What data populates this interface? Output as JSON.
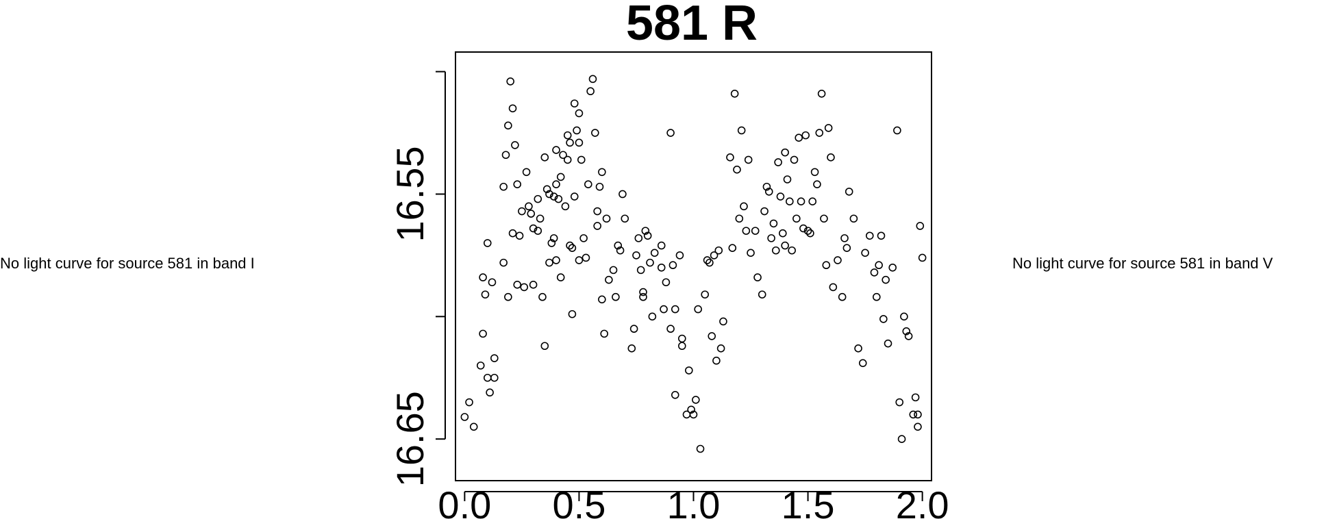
{
  "notes": {
    "left": "No light curve for source 581 in band I",
    "right": "No light curve for source 581 in band V"
  },
  "chart_data": {
    "type": "scatter",
    "title": "581 R",
    "xlabel": "",
    "ylabel": "",
    "xlim": [
      -0.04,
      2.04
    ],
    "ylim": [
      16.667,
      16.492
    ],
    "y_inverted": true,
    "grid": false,
    "x_ticks": [
      0.0,
      0.5,
      1.0,
      1.5,
      2.0
    ],
    "x_tick_labels": [
      "0.0",
      "0.5",
      "1.0",
      "1.5",
      "2.0"
    ],
    "y_ticks": [
      16.5,
      16.55,
      16.6,
      16.65
    ],
    "y_tick_labels": [
      "",
      "16.55",
      "",
      "16.65"
    ],
    "marker": "open-circle",
    "color": "#000000",
    "points": [
      [
        0.0,
        16.641
      ],
      [
        0.02,
        16.635
      ],
      [
        0.04,
        16.645
      ],
      [
        0.07,
        16.62
      ],
      [
        0.08,
        16.607
      ],
      [
        0.08,
        16.584
      ],
      [
        0.09,
        16.591
      ],
      [
        0.1,
        16.625
      ],
      [
        0.1,
        16.57
      ],
      [
        0.11,
        16.631
      ],
      [
        0.12,
        16.586
      ],
      [
        0.13,
        16.625
      ],
      [
        0.13,
        16.617
      ],
      [
        0.17,
        16.578
      ],
      [
        0.17,
        16.547
      ],
      [
        0.18,
        16.534
      ],
      [
        0.19,
        16.592
      ],
      [
        0.19,
        16.522
      ],
      [
        0.2,
        16.504
      ],
      [
        0.21,
        16.566
      ],
      [
        0.21,
        16.515
      ],
      [
        0.22,
        16.53
      ],
      [
        0.23,
        16.546
      ],
      [
        0.23,
        16.587
      ],
      [
        0.24,
        16.567
      ],
      [
        0.25,
        16.557
      ],
      [
        0.26,
        16.588
      ],
      [
        0.27,
        16.541
      ],
      [
        0.28,
        16.555
      ],
      [
        0.29,
        16.558
      ],
      [
        0.3,
        16.564
      ],
      [
        0.3,
        16.587
      ],
      [
        0.32,
        16.552
      ],
      [
        0.32,
        16.565
      ],
      [
        0.33,
        16.56
      ],
      [
        0.34,
        16.592
      ],
      [
        0.35,
        16.612
      ],
      [
        0.35,
        16.535
      ],
      [
        0.36,
        16.548
      ],
      [
        0.37,
        16.578
      ],
      [
        0.37,
        16.55
      ],
      [
        0.38,
        16.57
      ],
      [
        0.39,
        16.551
      ],
      [
        0.39,
        16.568
      ],
      [
        0.4,
        16.577
      ],
      [
        0.4,
        16.532
      ],
      [
        0.4,
        16.546
      ],
      [
        0.41,
        16.552
      ],
      [
        0.42,
        16.584
      ],
      [
        0.42,
        16.543
      ],
      [
        0.43,
        16.534
      ],
      [
        0.44,
        16.555
      ],
      [
        0.45,
        16.536
      ],
      [
        0.45,
        16.526
      ],
      [
        0.46,
        16.529
      ],
      [
        0.46,
        16.571
      ],
      [
        0.47,
        16.572
      ],
      [
        0.47,
        16.599
      ],
      [
        0.48,
        16.513
      ],
      [
        0.48,
        16.551
      ],
      [
        0.49,
        16.524
      ],
      [
        0.5,
        16.577
      ],
      [
        0.5,
        16.529
      ],
      [
        0.5,
        16.517
      ],
      [
        0.51,
        16.536
      ],
      [
        0.52,
        16.568
      ],
      [
        0.53,
        16.576
      ],
      [
        0.54,
        16.546
      ],
      [
        0.55,
        16.508
      ],
      [
        0.56,
        16.503
      ],
      [
        0.57,
        16.525
      ],
      [
        0.58,
        16.557
      ],
      [
        0.58,
        16.563
      ],
      [
        0.59,
        16.547
      ],
      [
        0.6,
        16.593
      ],
      [
        0.6,
        16.541
      ],
      [
        0.61,
        16.607
      ],
      [
        0.62,
        16.56
      ],
      [
        0.63,
        16.585
      ],
      [
        0.65,
        16.581
      ],
      [
        0.66,
        16.592
      ],
      [
        0.67,
        16.571
      ],
      [
        0.68,
        16.573
      ],
      [
        0.69,
        16.55
      ],
      [
        0.7,
        16.56
      ],
      [
        0.73,
        16.613
      ],
      [
        0.74,
        16.605
      ],
      [
        0.75,
        16.575
      ],
      [
        0.76,
        16.568
      ],
      [
        0.77,
        16.581
      ],
      [
        0.78,
        16.59
      ],
      [
        0.78,
        16.592
      ],
      [
        0.79,
        16.565
      ],
      [
        0.8,
        16.567
      ],
      [
        0.81,
        16.578
      ],
      [
        0.82,
        16.6
      ],
      [
        0.83,
        16.574
      ],
      [
        0.86,
        16.571
      ],
      [
        0.86,
        16.58
      ],
      [
        0.87,
        16.597
      ],
      [
        0.88,
        16.586
      ],
      [
        0.9,
        16.605
      ],
      [
        0.9,
        16.525
      ],
      [
        0.91,
        16.579
      ],
      [
        0.92,
        16.597
      ],
      [
        0.94,
        16.575
      ],
      [
        0.95,
        16.612
      ],
      [
        0.95,
        16.609
      ],
      [
        0.97,
        16.64
      ],
      [
        0.98,
        16.622
      ],
      [
        0.99,
        16.638
      ],
      [
        1.0,
        16.64
      ],
      [
        1.01,
        16.634
      ],
      [
        1.02,
        16.597
      ],
      [
        1.03,
        16.654
      ],
      [
        1.05,
        16.591
      ],
      [
        1.06,
        16.577
      ],
      [
        1.07,
        16.578
      ],
      [
        1.08,
        16.608
      ],
      [
        1.09,
        16.575
      ],
      [
        1.1,
        16.618
      ],
      [
        1.11,
        16.573
      ],
      [
        1.12,
        16.613
      ],
      [
        1.13,
        16.602
      ],
      [
        1.16,
        16.535
      ],
      [
        1.17,
        16.572
      ],
      [
        1.18,
        16.509
      ],
      [
        1.19,
        16.54
      ],
      [
        1.2,
        16.56
      ],
      [
        1.21,
        16.524
      ],
      [
        1.22,
        16.555
      ],
      [
        1.23,
        16.565
      ],
      [
        1.24,
        16.536
      ],
      [
        1.25,
        16.574
      ],
      [
        1.27,
        16.565
      ],
      [
        1.28,
        16.584
      ],
      [
        1.3,
        16.591
      ],
      [
        1.31,
        16.557
      ],
      [
        1.32,
        16.547
      ],
      [
        1.33,
        16.549
      ],
      [
        1.34,
        16.568
      ],
      [
        1.35,
        16.562
      ],
      [
        1.36,
        16.573
      ],
      [
        1.37,
        16.537
      ],
      [
        1.38,
        16.551
      ],
      [
        1.39,
        16.566
      ],
      [
        1.4,
        16.571
      ],
      [
        1.4,
        16.533
      ],
      [
        1.41,
        16.544
      ],
      [
        1.42,
        16.553
      ],
      [
        1.43,
        16.573
      ],
      [
        1.44,
        16.536
      ],
      [
        1.45,
        16.56
      ],
      [
        1.46,
        16.527
      ],
      [
        1.47,
        16.553
      ],
      [
        1.48,
        16.564
      ],
      [
        1.49,
        16.526
      ],
      [
        1.5,
        16.565
      ],
      [
        1.51,
        16.566
      ],
      [
        1.52,
        16.553
      ],
      [
        1.53,
        16.541
      ],
      [
        1.54,
        16.546
      ],
      [
        1.55,
        16.525
      ],
      [
        1.56,
        16.509
      ],
      [
        1.57,
        16.56
      ],
      [
        1.58,
        16.579
      ],
      [
        1.59,
        16.523
      ],
      [
        1.6,
        16.535
      ],
      [
        1.61,
        16.588
      ],
      [
        1.63,
        16.577
      ],
      [
        1.65,
        16.592
      ],
      [
        1.66,
        16.568
      ],
      [
        1.67,
        16.572
      ],
      [
        1.68,
        16.549
      ],
      [
        1.7,
        16.56
      ],
      [
        1.72,
        16.613
      ],
      [
        1.74,
        16.619
      ],
      [
        1.75,
        16.574
      ],
      [
        1.77,
        16.567
      ],
      [
        1.79,
        16.582
      ],
      [
        1.8,
        16.592
      ],
      [
        1.81,
        16.579
      ],
      [
        1.82,
        16.567
      ],
      [
        1.83,
        16.601
      ],
      [
        1.84,
        16.585
      ],
      [
        1.85,
        16.611
      ],
      [
        1.87,
        16.58
      ],
      [
        1.89,
        16.524
      ],
      [
        1.9,
        16.635
      ],
      [
        1.91,
        16.65
      ],
      [
        1.93,
        16.606
      ],
      [
        1.94,
        16.608
      ],
      [
        1.96,
        16.64
      ],
      [
        1.97,
        16.633
      ],
      [
        1.98,
        16.64
      ],
      [
        1.99,
        16.563
      ],
      [
        2.0,
        16.576
      ],
      [
        1.98,
        16.645
      ],
      [
        0.92,
        16.632
      ],
      [
        1.92,
        16.6
      ]
    ]
  }
}
